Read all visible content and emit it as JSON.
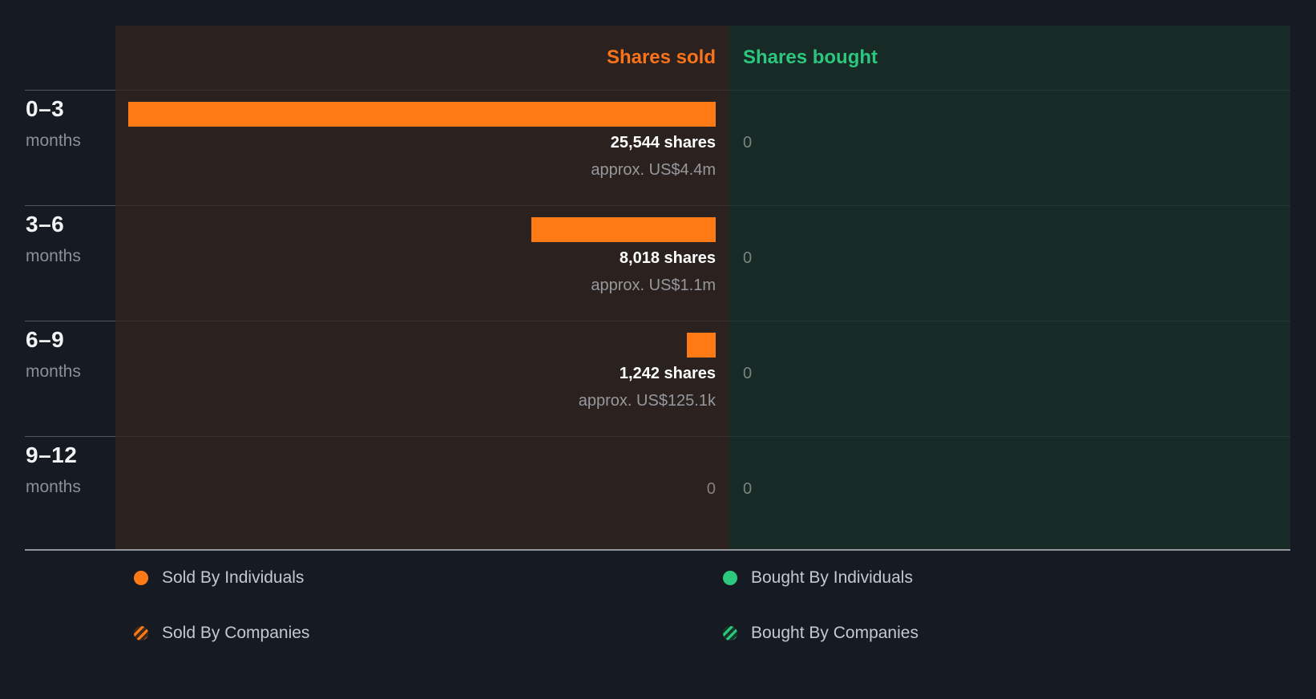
{
  "colors": {
    "sold_accent": "#ff7a15",
    "bought_accent": "#2dc97e",
    "sold_panel_bg": "#2b2220",
    "bought_panel_bg": "#172a25",
    "page_bg": "#151a23"
  },
  "header": {
    "sold": "Shares sold",
    "bought": "Shares bought"
  },
  "rows": [
    {
      "period": "0–3",
      "unit": "months",
      "sold_primary": "25,544 shares",
      "sold_secondary": "approx. US$4.4m",
      "bought_primary": "0"
    },
    {
      "period": "3–6",
      "unit": "months",
      "sold_primary": "8,018 shares",
      "sold_secondary": "approx. US$1.1m",
      "bought_primary": "0"
    },
    {
      "period": "6–9",
      "unit": "months",
      "sold_primary": "1,242 shares",
      "sold_secondary": "approx. US$125.1k",
      "bought_primary": "0"
    },
    {
      "period": "9–12",
      "unit": "months",
      "sold_primary": "0",
      "sold_secondary": "",
      "bought_primary": "0"
    }
  ],
  "legend": {
    "items": [
      {
        "label": "Sold By Individuals",
        "icon": "solid-orange-dot"
      },
      {
        "label": "Sold By Companies",
        "icon": "hatched-orange-dot"
      },
      {
        "label": "Bought By Individuals",
        "icon": "solid-green-dot"
      },
      {
        "label": "Bought By Companies",
        "icon": "hatched-green-dot"
      }
    ]
  },
  "chart_data": {
    "type": "bar",
    "orientation": "horizontal",
    "categories": [
      "0–3 months",
      "3–6 months",
      "6–9 months",
      "9–12 months"
    ],
    "series": [
      {
        "name": "Shares sold",
        "color": "#ff7a15",
        "values": [
          25544,
          8018,
          1242,
          0
        ],
        "value_labels": [
          "25,544 shares",
          "8,018 shares",
          "1,242 shares",
          "0"
        ],
        "approx_labels": [
          "approx. US$4.4m",
          "approx. US$1.1m",
          "approx. US$125.1k",
          ""
        ]
      },
      {
        "name": "Shares bought",
        "color": "#2dc97e",
        "values": [
          0,
          0,
          0,
          0
        ],
        "value_labels": [
          "0",
          "0",
          "0",
          "0"
        ],
        "approx_labels": [
          "",
          "",
          "",
          ""
        ]
      }
    ],
    "xlim": [
      0,
      25544
    ],
    "grid": "row-dividers",
    "legend_entries": [
      "Sold By Individuals",
      "Sold By Companies",
      "Bought By Individuals",
      "Bought By Companies"
    ],
    "legend_position": "bottom"
  }
}
